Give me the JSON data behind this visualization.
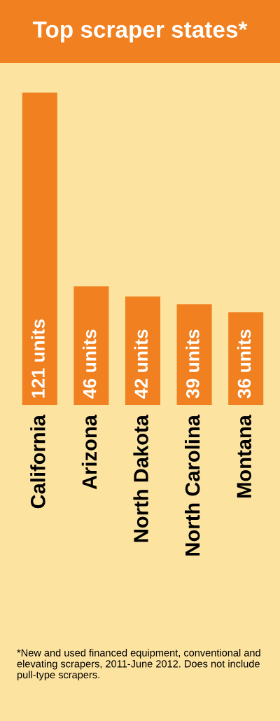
{
  "chart_data": {
    "type": "bar",
    "title": "Top scraper states*",
    "categories": [
      "California",
      "Arizona",
      "North Dakota",
      "North Carolina",
      "Montana"
    ],
    "values": [
      121,
      46,
      42,
      39,
      36
    ],
    "value_labels": [
      "121 units",
      "46 units",
      "42 units",
      "39 units",
      "36 units"
    ],
    "color": "#f08020",
    "annotations": [
      "*New and used financed equipment, conventional and elevating scrapers, 2011-June 2012. Does not include pull-type scrapers."
    ]
  }
}
